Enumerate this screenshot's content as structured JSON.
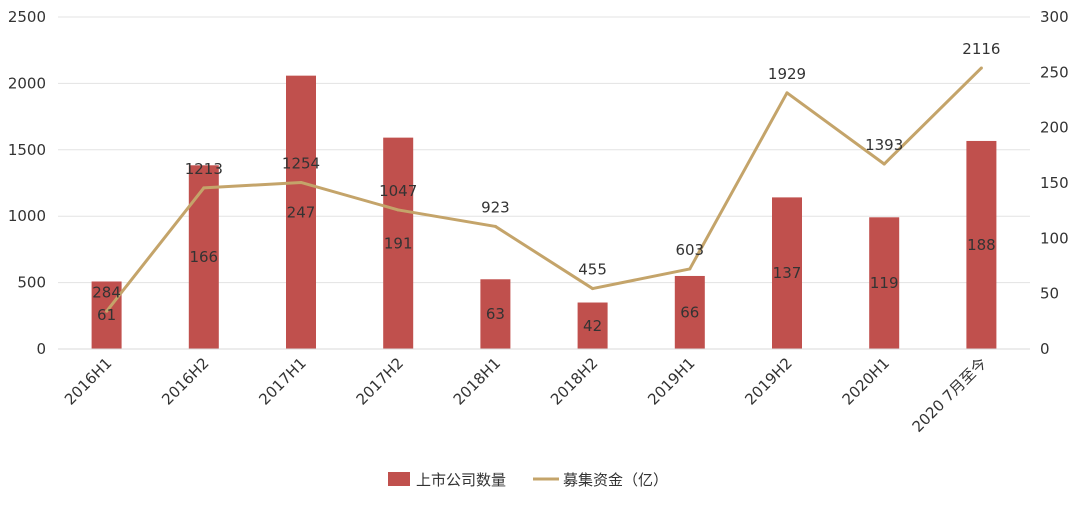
{
  "chart_data": {
    "type": "bar",
    "categories": [
      "2016H1",
      "2016H2",
      "2017H1",
      "2017H2",
      "2018H1",
      "2018H2",
      "2019H1",
      "2019H2",
      "2020H1",
      "2020 7月至今"
    ],
    "series": [
      {
        "name": "上市公司数量",
        "type": "bar",
        "axis": "right",
        "values": [
          61,
          166,
          247,
          191,
          63,
          42,
          66,
          137,
          119,
          188
        ],
        "color": "#c0504d"
      },
      {
        "name": "募集资金（亿）",
        "type": "line",
        "axis": "left",
        "values": [
          284,
          1213,
          1254,
          1047,
          923,
          455,
          603,
          1929,
          1393,
          2116
        ],
        "color": "#c4a46a"
      }
    ],
    "left_axis": {
      "ylim": [
        0,
        2500
      ],
      "ticks": [
        "0",
        "500",
        "1000",
        "1500",
        "2000",
        "2500"
      ]
    },
    "right_axis": {
      "ylim": [
        0,
        300
      ],
      "ticks": [
        "0",
        "50",
        "100",
        "150",
        "200",
        "250",
        "300"
      ]
    },
    "legend": {
      "position": "bottom",
      "labels": [
        "上市公司数量",
        "募集资金（亿）"
      ]
    },
    "grid": true
  }
}
